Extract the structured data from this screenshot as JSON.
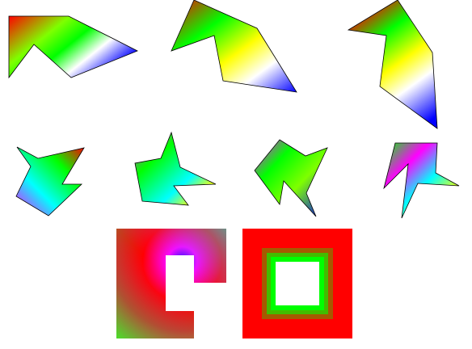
{
  "scene": {
    "description_colors": {
      "red": "#ff0000",
      "yellow": "#ffff00",
      "green": "#00ff00",
      "cyan": "#00ffff",
      "blue": "#0000ff",
      "magenta": "#ff00ff",
      "white": "#ffffff",
      "outline": "#000000"
    },
    "shapes": [
      {
        "name": "gradient-polygon-1"
      },
      {
        "name": "gradient-polygon-2"
      },
      {
        "name": "gradient-polygon-3"
      },
      {
        "name": "gradient-star-1"
      },
      {
        "name": "gradient-star-2"
      },
      {
        "name": "gradient-star-3"
      },
      {
        "name": "gradient-star-4"
      },
      {
        "name": "gradient-square-c-shape"
      },
      {
        "name": "gradient-square-frame"
      }
    ]
  }
}
